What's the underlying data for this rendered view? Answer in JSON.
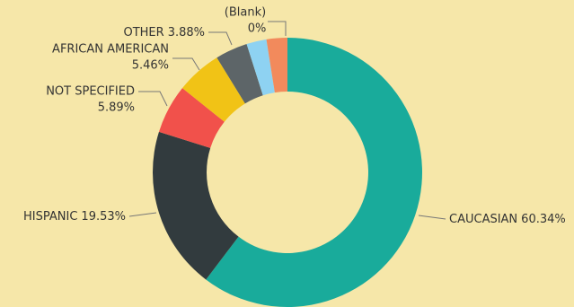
{
  "chart_data": {
    "type": "donut",
    "categories": [
      "CAUCASIAN",
      "HISPANIC",
      "NOT SPECIFIED",
      "AFRICAN AMERICAN",
      "OTHER",
      null,
      null,
      "(Blank)"
    ],
    "values": [
      60.34,
      19.53,
      5.89,
      5.46,
      3.88,
      2.4,
      2.5,
      0
    ],
    "value_labels": [
      "60.34%",
      "19.53%",
      "5.89%",
      "5.46%",
      "3.88%",
      null,
      null,
      "0%"
    ],
    "colors": [
      "#19ab9b",
      "#323b3e",
      "#f1514b",
      "#f1c316",
      "#5d6568",
      "#8ed2f2",
      "#f28a5c",
      "#f28a5c"
    ]
  }
}
